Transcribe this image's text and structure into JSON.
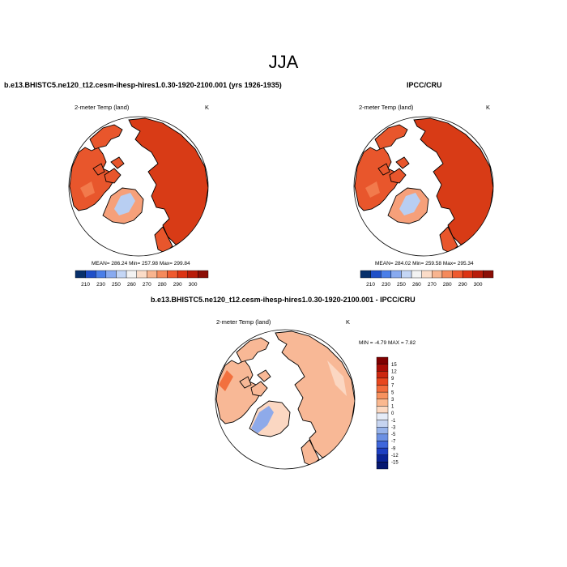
{
  "main_title": "JJA",
  "panels": [
    {
      "title": "b.e13.BHISTC5.ne120_t12.cesm-ihesp-hires1.0.30-1920-2100.001 (yrs 1926-1935)",
      "left_label": "2-meter Temp (land)",
      "units": "K",
      "stats": "MEAN= 286.24  Min= 257.98  Max= 299.84"
    },
    {
      "title": "IPCC/CRU",
      "left_label": "2-meter Temp (land)",
      "units": "K",
      "stats": "MEAN= 284.02  Min= 259.58  Max= 295.34"
    },
    {
      "title": "b.e13.BHISTC5.ne120_t12.cesm-ihesp-hires1.0.30-1920-2100.001 - IPCC/CRU",
      "left_label": "2-meter Temp (land)",
      "units": "K",
      "stats": "MIN =  -4.79 MAX =   7.82"
    }
  ],
  "temp_colorbar": {
    "labels": [
      "210",
      "230",
      "250",
      "260",
      "270",
      "280",
      "290",
      "300"
    ],
    "colors": [
      "#08306b",
      "#1f4fc8",
      "#4a7ee8",
      "#88aaf0",
      "#c4d6f5",
      "#f3f3f3",
      "#fbdcc8",
      "#f8b48f",
      "#f58a5c",
      "#ef5a2f",
      "#dc3414",
      "#b81c0a",
      "#8b0e06"
    ]
  },
  "diff_colorbar": {
    "labels": [
      "15",
      "12",
      "9",
      "7",
      "5",
      "3",
      "1",
      "0",
      "-1",
      "-3",
      "-5",
      "-7",
      "-9",
      "-12",
      "-15"
    ],
    "colors": [
      "#7f0000",
      "#a80d06",
      "#cc2810",
      "#e8471e",
      "#f26c3c",
      "#f7925f",
      "#fab88f",
      "#fcd9c2",
      "#e6ecf7",
      "#c6d4f0",
      "#97b3ea",
      "#6b90e3",
      "#3e66db",
      "#1d3fc2",
      "#0a2395",
      "#061870"
    ]
  },
  "map_colors": {
    "ocean": "#ffffff",
    "temp_land": "#e8562c",
    "temp_land_dark": "#d83b16",
    "temp_land_light": "#f27a4c",
    "greenland_interior": "#b8cef2",
    "diff_land": "#f8b896",
    "diff_land_light": "#fbd7c2",
    "diff_cold": "#8eaaea"
  }
}
